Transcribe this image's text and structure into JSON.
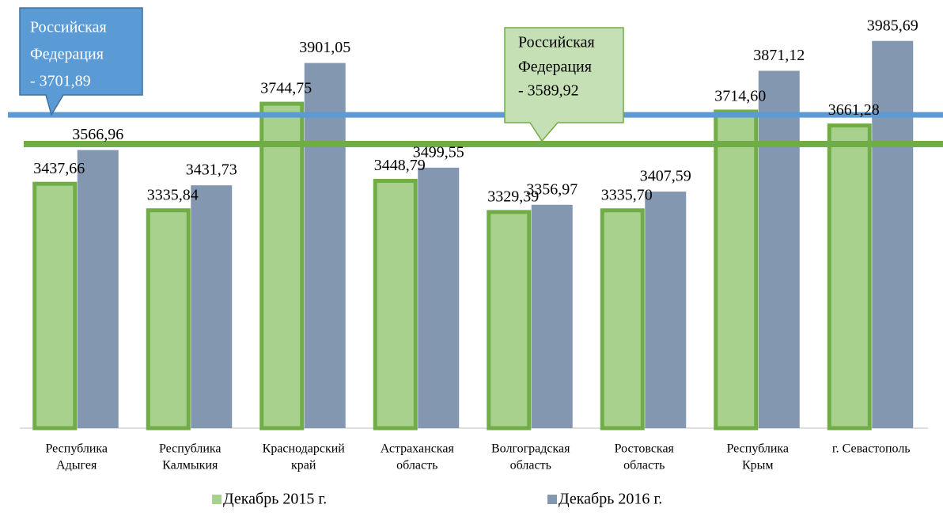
{
  "chart_data": {
    "type": "bar",
    "categories": [
      [
        "Республика",
        "Адыгея"
      ],
      [
        "Республика",
        "Калмыкия"
      ],
      [
        "Краснодарский",
        "край"
      ],
      [
        "Астраханская",
        "область"
      ],
      [
        "Волгоградская",
        "область"
      ],
      [
        "Ростовская",
        "область"
      ],
      [
        "Республика",
        "Крым"
      ],
      [
        "г. Севастополь"
      ]
    ],
    "series": [
      {
        "name": "Декабрь 2015 г.",
        "color": "#a9d18e",
        "stroke": "#70ad47",
        "values": [
          3437.66,
          3335.84,
          3744.75,
          3448.79,
          3329.39,
          3335.7,
          3714.6,
          3661.28
        ],
        "value_labels": [
          "3437,66",
          "3335,84",
          "3744,75",
          "3448,79",
          "3329,39",
          "3335,70",
          "3714,60",
          "3661,28"
        ]
      },
      {
        "name": "Декабрь 2016 г.",
        "color": "#8497b0",
        "values": [
          3566.96,
          3431.73,
          3901.05,
          3499.55,
          3356.97,
          3407.59,
          3871.12,
          3985.69
        ],
        "value_labels": [
          "3566,96",
          "3431,73",
          "3901,05",
          "3499,55",
          "3356,97",
          "3407,59",
          "3871,12",
          "3985,69"
        ]
      }
    ],
    "reference_lines": [
      {
        "value": 3701.89,
        "color": "#5b9bd5",
        "label": [
          "Российская",
          "Федерация",
          "- 3701,89"
        ]
      },
      {
        "value": 3589.92,
        "color": "#70ad47",
        "label": [
          "Российская",
          "Федерация",
          "- 3589,92"
        ]
      }
    ],
    "ylim": [
      2500,
      4000
    ],
    "legend": "bottom"
  }
}
